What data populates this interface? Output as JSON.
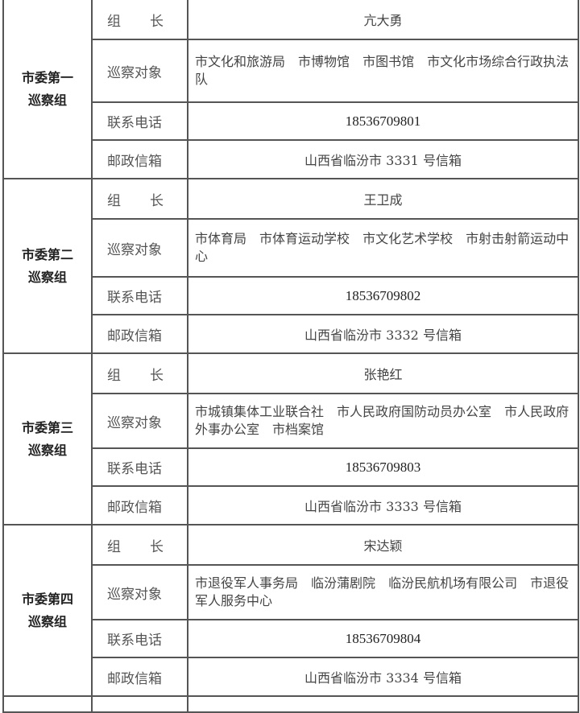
{
  "labels": {
    "leader_a": "组",
    "leader_b": "长",
    "targets": "巡察对象",
    "phone": "联系电话",
    "mailbox": "邮政信箱"
  },
  "groups": [
    {
      "name_line1": "市委第一",
      "name_line2": "巡察组",
      "leader": "亢大勇",
      "targets": [
        "市文化和旅游局",
        "市博物馆",
        "市图书馆",
        "市文化市场综合行政执法队"
      ],
      "phone": "18536709801",
      "mailbox": "山西省临汾市 3331 号信箱"
    },
    {
      "name_line1": "市委第二",
      "name_line2": "巡察组",
      "leader": "王卫成",
      "targets": [
        "市体育局",
        "市体育运动学校",
        "市文化艺术学校",
        "市射击射箭运动中心"
      ],
      "phone": "18536709802",
      "mailbox": "山西省临汾市 3332 号信箱"
    },
    {
      "name_line1": "市委第三",
      "name_line2": "巡察组",
      "leader": "张艳红",
      "targets": [
        "市城镇集体工业联合社",
        "市人民政府国防动员办公室",
        "市人民政府外事办公室",
        "市档案馆"
      ],
      "phone": "18536709803",
      "mailbox": "山西省临汾市 3333 号信箱"
    },
    {
      "name_line1": "市委第四",
      "name_line2": "巡察组",
      "leader": "宋达颖",
      "targets": [
        "市退役军人事务局",
        "临汾蒲剧院",
        "临汾民航机场有限公司",
        "市退役军人服务中心"
      ],
      "phone": "18536709804",
      "mailbox": "山西省临汾市 3334 号信箱"
    }
  ]
}
